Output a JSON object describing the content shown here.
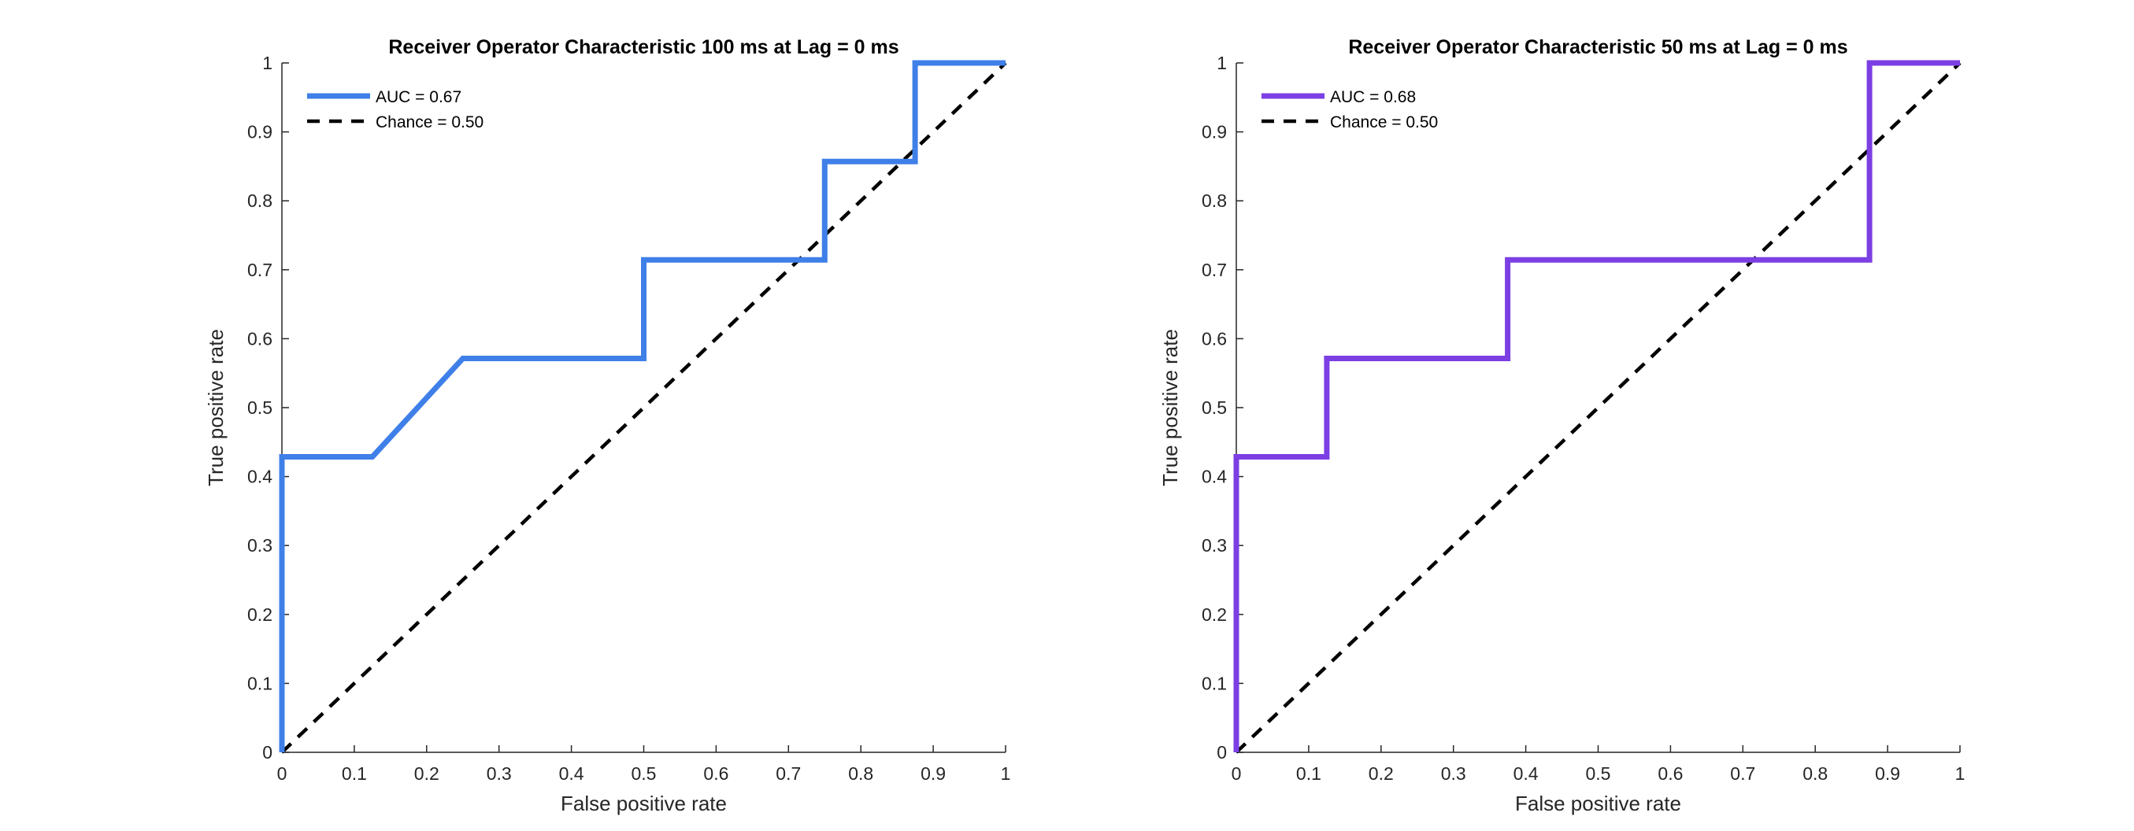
{
  "chart_data": [
    {
      "type": "line",
      "title": "Receiver Operator Characteristic 100 ms at Lag = 0 ms",
      "xlabel": "False positive rate",
      "ylabel": "True positive rate",
      "xlim": [
        0,
        1
      ],
      "ylim": [
        0,
        1
      ],
      "xticks": [
        "0",
        "0.1",
        "0.2",
        "0.3",
        "0.4",
        "0.5",
        "0.6",
        "0.7",
        "0.8",
        "0.9",
        "1"
      ],
      "yticks": [
        "0",
        "0.1",
        "0.2",
        "0.3",
        "0.4",
        "0.5",
        "0.6",
        "0.7",
        "0.8",
        "0.9",
        "1"
      ],
      "grid": false,
      "legend_position": "top-left",
      "series": [
        {
          "name": "AUC = 0.67",
          "color": "#3F7FE8",
          "style": "solid",
          "x": [
            0,
            0,
            0.125,
            0.25,
            0.5,
            0.5,
            0.75,
            0.75,
            0.875,
            0.875,
            1
          ],
          "y": [
            0,
            0.4286,
            0.4286,
            0.5714,
            0.5714,
            0.7143,
            0.7143,
            0.8571,
            0.8571,
            1,
            1
          ]
        },
        {
          "name": "Chance = 0.50",
          "color": "#000000",
          "style": "dashed",
          "x": [
            0,
            1
          ],
          "y": [
            0,
            1
          ]
        }
      ]
    },
    {
      "type": "line",
      "title": "Receiver Operator Characteristic 50 ms at Lag = 0 ms",
      "xlabel": "False positive rate",
      "ylabel": "True positive rate",
      "xlim": [
        0,
        1
      ],
      "ylim": [
        0,
        1
      ],
      "xticks": [
        "0",
        "0.1",
        "0.2",
        "0.3",
        "0.4",
        "0.5",
        "0.6",
        "0.7",
        "0.8",
        "0.9",
        "1"
      ],
      "yticks": [
        "0",
        "0.1",
        "0.2",
        "0.3",
        "0.4",
        "0.5",
        "0.6",
        "0.7",
        "0.8",
        "0.9",
        "1"
      ],
      "grid": false,
      "legend_position": "top-left",
      "series": [
        {
          "name": "AUC = 0.68",
          "color": "#7B3FE4",
          "style": "solid",
          "x": [
            0,
            0,
            0.125,
            0.125,
            0.375,
            0.375,
            0.875,
            0.875,
            1
          ],
          "y": [
            0,
            0.4286,
            0.4286,
            0.5714,
            0.5714,
            0.7143,
            0.7143,
            1,
            1
          ]
        },
        {
          "name": "Chance = 0.50",
          "color": "#000000",
          "style": "dashed",
          "x": [
            0,
            1
          ],
          "y": [
            0,
            1
          ]
        }
      ]
    }
  ]
}
